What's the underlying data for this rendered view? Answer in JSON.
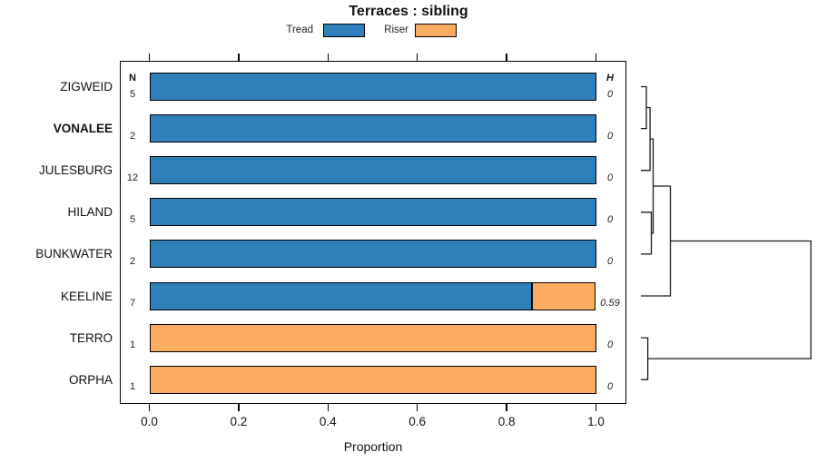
{
  "title": "Terraces : sibling",
  "xlabel": "Proportion",
  "x_ticks": [
    "0.0",
    "0.2",
    "0.4",
    "0.6",
    "0.8",
    "1.0"
  ],
  "columns": {
    "n_header": "N",
    "h_header": "H"
  },
  "legend": [
    {
      "label": "Tread",
      "color": "#2F7FBB"
    },
    {
      "label": "Riser",
      "color": "#FCAC61"
    }
  ],
  "chart_data": {
    "type": "bar",
    "orientation": "horizontal",
    "stacked": true,
    "title": "Terraces : sibling",
    "xlabel": "Proportion",
    "xlim": [
      0.0,
      1.0
    ],
    "grid": false,
    "legend_position": "top",
    "categories": [
      "ZIGWEID",
      "VONALEE",
      "JULESBURG",
      "HILAND",
      "BUNKWATER",
      "KEELINE",
      "TERRO",
      "ORPHA"
    ],
    "bold_categories": [
      "VONALEE"
    ],
    "n": [
      5,
      2,
      12,
      5,
      2,
      7,
      1,
      1
    ],
    "h_display": [
      "0",
      "0",
      "0",
      "0",
      "0",
      "0.59",
      "0",
      "0"
    ],
    "series": [
      {
        "name": "Tread",
        "color": "#2F7FBB",
        "values": [
          1,
          1,
          1,
          1,
          1,
          0.857,
          0,
          0
        ]
      },
      {
        "name": "Riser",
        "color": "#FCAC61",
        "values": [
          0,
          0,
          0,
          0,
          0,
          0.143,
          1,
          1
        ]
      }
    ],
    "dendrogram": {
      "note": "right-side dendrogram, heights normalized 0-1",
      "merges": [
        {
          "id": "m0",
          "a": "ZIGWEID",
          "b": "VONALEE",
          "height": 0.032
        },
        {
          "id": "m1",
          "a": "m0",
          "b": "JULESBURG",
          "height": 0.054
        },
        {
          "id": "m2",
          "a": "HILAND",
          "b": "BUNKWATER",
          "height": 0.0615
        },
        {
          "id": "m3",
          "a": "m1",
          "b": "m2",
          "height": 0.072
        },
        {
          "id": "m4",
          "a": "m3",
          "b": "KEELINE",
          "height": 0.1735
        },
        {
          "id": "m5",
          "a": "TERRO",
          "b": "ORPHA",
          "height": 0.0405
        },
        {
          "id": "m6",
          "a": "m4",
          "b": "m5",
          "height": 1.0
        }
      ]
    }
  }
}
